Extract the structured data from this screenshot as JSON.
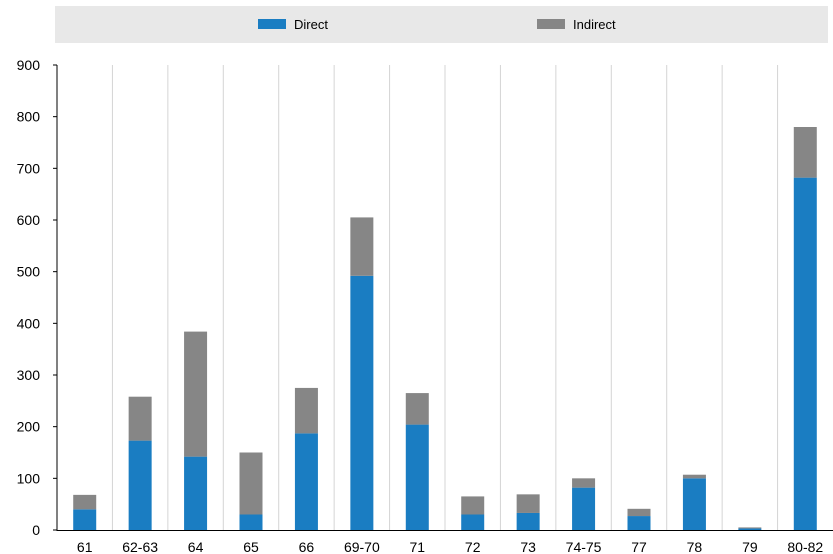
{
  "chart_data": {
    "type": "bar",
    "stacked": true,
    "categories": [
      "61",
      "62-63",
      "64",
      "65",
      "66",
      "69-70",
      "71",
      "72",
      "73",
      "74-75",
      "77",
      "78",
      "79",
      "80-82"
    ],
    "series": [
      {
        "name": "Direct",
        "color": "#1a7dc2",
        "values": [
          40,
          173,
          142,
          30,
          187,
          492,
          204,
          30,
          33,
          82,
          27,
          100,
          3,
          682
        ]
      },
      {
        "name": "Indirect",
        "color": "#868686",
        "values": [
          28,
          85,
          242,
          120,
          88,
          113,
          61,
          35,
          36,
          18,
          14,
          7,
          2,
          98
        ]
      }
    ],
    "ylim": [
      0,
      900
    ],
    "yticks": [
      0,
      100,
      200,
      300,
      400,
      500,
      600,
      700,
      800,
      900
    ],
    "grid": "vertical",
    "legend_position": "top",
    "title": "",
    "xlabel": "",
    "ylabel": ""
  }
}
